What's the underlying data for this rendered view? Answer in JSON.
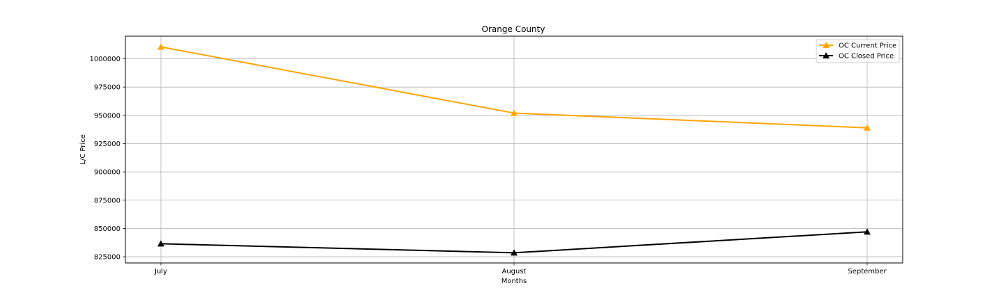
{
  "chart_data": {
    "type": "line",
    "title": "Orange County",
    "xlabel": "Months",
    "ylabel": "L/C Price",
    "categories": [
      "July",
      "August",
      "September"
    ],
    "ylim": [
      819500,
      1020000
    ],
    "yticks": [
      825000,
      850000,
      875000,
      900000,
      925000,
      950000,
      975000,
      1000000
    ],
    "grid": true,
    "legend_position": "upper right",
    "series": [
      {
        "name": "OC Current Price",
        "color": "#FFA500",
        "marker": "triangle-up",
        "values": [
          1010500,
          952000,
          939000
        ]
      },
      {
        "name": "OC Closed Price",
        "color": "#000000",
        "marker": "triangle-up",
        "values": [
          836500,
          828500,
          847000
        ]
      }
    ]
  }
}
